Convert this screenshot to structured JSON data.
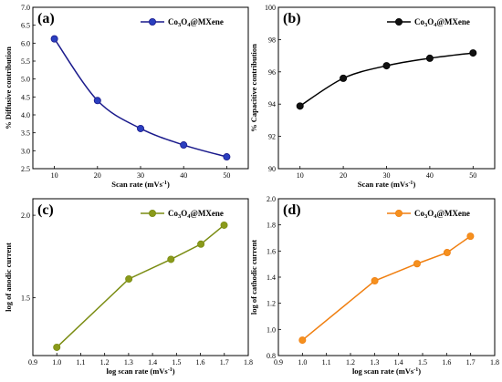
{
  "chart_data": [
    {
      "panel": "(a)",
      "type": "line",
      "color": "#1a1a8c",
      "marker_color": "#2b3fbf",
      "legend": {
        "line1": "Co",
        "sub1": "3",
        "line2": "O",
        "sub2": "4",
        "rest": "@MXene",
        "position": "top-right"
      },
      "xlabel": "Scan rate (mVs",
      "xlabel_sup": "-1",
      "xlabel_end": ")",
      "ylabel": "% Diffusive contribution",
      "xlim": [
        5,
        55
      ],
      "ylim": [
        2.5,
        7.0
      ],
      "xticks": [
        10,
        20,
        30,
        40,
        50
      ],
      "yticks": [
        2.5,
        3.0,
        3.5,
        4.0,
        4.5,
        5.0,
        5.5,
        6.0,
        6.5,
        7.0
      ],
      "ytick_labels": [
        "2.5",
        "3.0",
        "3.5",
        "4.0",
        "4.5",
        "5.0",
        "5.5",
        "6.0",
        "6.5",
        "7.0"
      ],
      "xtick_labels": [
        "10",
        "20",
        "30",
        "40",
        "50"
      ],
      "series": [
        {
          "x": [
            10,
            20,
            30,
            40,
            50
          ],
          "y": [
            6.12,
            4.4,
            3.62,
            3.16,
            2.83
          ]
        }
      ],
      "smooth": true
    },
    {
      "panel": "(b)",
      "type": "line",
      "color": "#000000",
      "marker_color": "#111111",
      "legend": {
        "line1": "Co",
        "sub1": "3",
        "line2": "O",
        "sub2": "4",
        "rest": "@MXene",
        "position": "top-right"
      },
      "xlabel": "Scan rate (mVs",
      "xlabel_sup": "-1",
      "xlabel_end": ")",
      "ylabel": "% Capacitive contribution",
      "xlim": [
        5,
        55
      ],
      "ylim": [
        90,
        100
      ],
      "xticks": [
        10,
        20,
        30,
        40,
        50
      ],
      "yticks": [
        90,
        92,
        94,
        96,
        98,
        100
      ],
      "ytick_labels": [
        "90",
        "92",
        "94",
        "96",
        "98",
        "100"
      ],
      "xtick_labels": [
        "10",
        "20",
        "30",
        "40",
        "50"
      ],
      "series": [
        {
          "x": [
            10,
            20,
            30,
            40,
            50
          ],
          "y": [
            93.88,
            95.6,
            96.38,
            96.84,
            97.17
          ]
        }
      ],
      "smooth": true
    },
    {
      "panel": "(c)",
      "type": "line",
      "color": "#7a8c12",
      "marker_color": "#8a9a1a",
      "legend": {
        "line1": "Co",
        "sub1": "3",
        "line2": "O",
        "sub2": "4",
        "rest": "@MXene",
        "position": "top-right"
      },
      "xlabel": "log scan rate (mVs",
      "xlabel_sup": "-1",
      "xlabel_end": ")",
      "ylabel": "log of anodic current",
      "xlim": [
        0.9,
        1.8
      ],
      "ylim": [
        1.15,
        2.1
      ],
      "xticks": [
        0.9,
        1.0,
        1.1,
        1.2,
        1.3,
        1.4,
        1.5,
        1.6,
        1.7,
        1.8
      ],
      "xtick_labels": [
        "0.9",
        "1.0",
        "1.1",
        "1.2",
        "1.3",
        "1.4",
        "1.5",
        "1.6",
        "1.7",
        "1.8"
      ],
      "yticks": [
        1.5,
        2.0
      ],
      "ytick_labels": [
        "1.5",
        "2.0"
      ],
      "series": [
        {
          "x": [
            1.0,
            1.301,
            1.477,
            1.602,
            1.699
          ],
          "y": [
            1.2,
            1.614,
            1.733,
            1.825,
            1.94
          ]
        }
      ],
      "smooth": false
    },
    {
      "panel": "(d)",
      "type": "line",
      "color": "#f07f10",
      "marker_color": "#f5901e",
      "legend": {
        "line1": "Co",
        "sub1": "3",
        "line2": "O",
        "sub2": "4",
        "rest": "@MXene",
        "position": "top-right"
      },
      "xlabel": "log scan rate (mVs",
      "xlabel_sup": "-1",
      "xlabel_end": ")",
      "ylabel": "log of cathodic current",
      "xlim": [
        0.9,
        1.8
      ],
      "ylim": [
        0.8,
        2.0
      ],
      "xticks": [
        0.9,
        1.0,
        1.1,
        1.2,
        1.3,
        1.4,
        1.5,
        1.6,
        1.7,
        1.8
      ],
      "xtick_labels": [
        "0.9",
        "1.0",
        "1.1",
        "1.2",
        "1.3",
        "1.4",
        "1.5",
        "1.6",
        "1.7",
        "1.8"
      ],
      "yticks": [
        0.8,
        1.0,
        1.2,
        1.4,
        1.6,
        1.8,
        2.0
      ],
      "ytick_labels": [
        "0.8",
        "1.0",
        "1.2",
        "1.4",
        "1.6",
        "1.8",
        "2.0"
      ],
      "series": [
        {
          "x": [
            1.0,
            1.301,
            1.477,
            1.602,
            1.699
          ],
          "y": [
            0.918,
            1.372,
            1.503,
            1.588,
            1.713
          ]
        }
      ],
      "smooth": false
    }
  ]
}
